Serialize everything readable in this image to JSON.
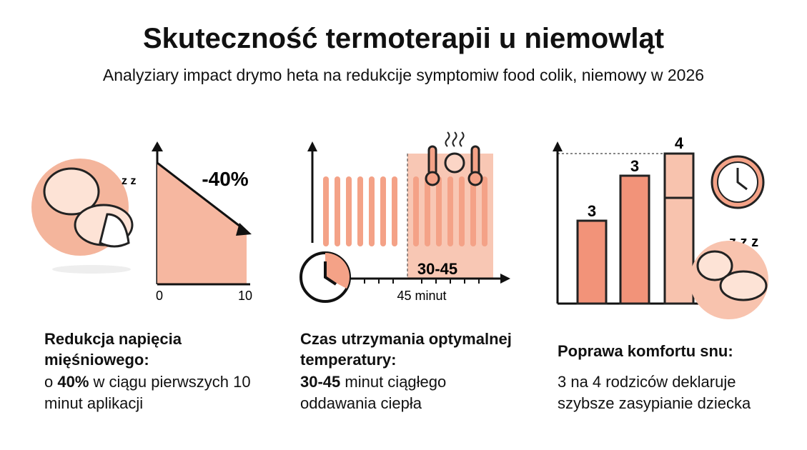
{
  "header": {
    "title": "Skuteczność termoterapii u niemowląt",
    "subtitle": "Analyziary impact drymo heta na redukcije symptomiw food colik,  niemowy w 2026"
  },
  "panels": [
    {
      "chart": {
        "label": "-40%",
        "x_start": "0",
        "x_end": "10"
      },
      "heading": "Redukcja napięcia mięśniowego:",
      "body": {
        "lead": "o ",
        "bold": "40%",
        "rest": " w ciągu pierwszych 10 minut aplikacji"
      }
    },
    {
      "chart": {
        "label": "30-45",
        "axis_label": "45 minut"
      },
      "heading": "Czas utrzymania optymalnej temperatury:",
      "body": {
        "bold": "30-45",
        "rest": " minut ciągłego oddawania ciepła"
      }
    },
    {
      "chart": {
        "bar_labels": [
          "3",
          "3",
          "4"
        ]
      },
      "heading": "Poprawa komfortu snu:",
      "body": {
        "rest": "3 na 4 rodziców deklaruje szybsze zasypianie dziecka"
      }
    }
  ]
}
